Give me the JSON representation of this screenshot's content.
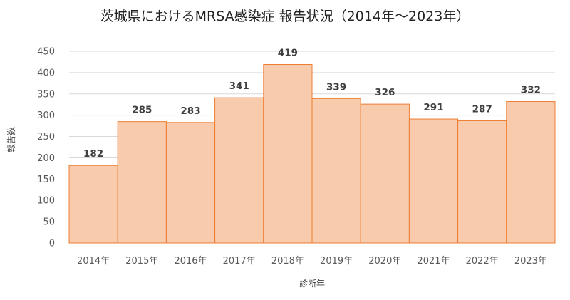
{
  "chart_data": {
    "type": "bar",
    "title": "茨城県におけるMRSA感染症 報告状況（2014年～2023年）",
    "xlabel": "診断年",
    "ylabel": "報告数",
    "categories": [
      "2014年",
      "2015年",
      "2016年",
      "2017年",
      "2018年",
      "2019年",
      "2020年",
      "2021年",
      "2022年",
      "2023年"
    ],
    "values": [
      182,
      285,
      283,
      341,
      419,
      339,
      326,
      291,
      287,
      332
    ],
    "ylim": [
      0,
      450
    ],
    "yticks": [
      0,
      50,
      100,
      150,
      200,
      250,
      300,
      350,
      400,
      450
    ],
    "grid": true,
    "legend": "none",
    "colors": {
      "bar_fill": "#F8CBAD",
      "bar_stroke": "#ED7D31",
      "grid": "#D9D9D9"
    }
  }
}
